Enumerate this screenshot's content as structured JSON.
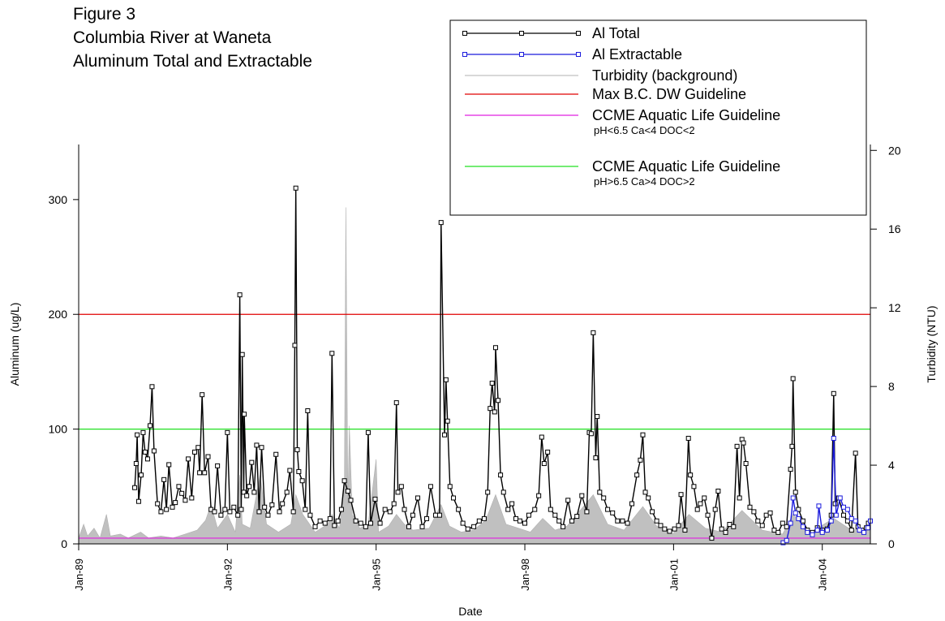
{
  "chart_data": {
    "type": "line",
    "title": [
      "Figure 3",
      "Columbia River at Waneta",
      "Aluminum Total and Extractable"
    ],
    "x_label": "Date",
    "y_label": "Aluminum (ug/L)",
    "y2_label": "Turbidity (NTU)",
    "xlim": [
      1989,
      2004.97
    ],
    "xticks": [
      {
        "value": 1989,
        "label": "Jan-89"
      },
      {
        "value": 1992,
        "label": "Jan-92"
      },
      {
        "value": 1995,
        "label": "Jan-95"
      },
      {
        "value": 1998,
        "label": "Jan-98"
      },
      {
        "value": 2001,
        "label": "Jan-01"
      },
      {
        "value": 2004,
        "label": "Jan-04"
      }
    ],
    "ylim": [
      0,
      348
    ],
    "yticks": [
      0,
      100,
      200,
      300
    ],
    "y2lim": [
      0,
      20.3
    ],
    "y2ticks": [
      0,
      4,
      8,
      12,
      16,
      20
    ],
    "series": [
      {
        "name": "Al Total",
        "color": "#000000",
        "style": "line-markers",
        "x": [
          1990.13,
          1990.16,
          1990.18,
          1990.21,
          1990.26,
          1990.3,
          1990.34,
          1990.39,
          1990.44,
          1990.48,
          1990.52,
          1990.59,
          1990.66,
          1990.72,
          1990.77,
          1990.82,
          1990.89,
          1990.95,
          1991.02,
          1991.08,
          1991.15,
          1991.21,
          1991.28,
          1991.34,
          1991.41,
          1991.44,
          1991.49,
          1991.54,
          1991.61,
          1991.67,
          1991.74,
          1991.8,
          1991.87,
          1991.95,
          1992.0,
          1992.05,
          1992.13,
          1992.21,
          1992.25,
          1992.28,
          1992.3,
          1992.33,
          1992.34,
          1992.39,
          1992.44,
          1992.49,
          1992.54,
          1992.59,
          1992.64,
          1992.69,
          1992.75,
          1992.82,
          1992.9,
          1992.98,
          1993.05,
          1993.11,
          1993.2,
          1993.26,
          1993.33,
          1993.36,
          1993.38,
          1993.41,
          1993.44,
          1993.51,
          1993.57,
          1993.62,
          1993.67,
          1993.77,
          1993.87,
          1993.97,
          1994.07,
          1994.11,
          1994.16,
          1994.23,
          1994.3,
          1994.36,
          1994.43,
          1994.49,
          1994.59,
          1994.69,
          1994.79,
          1994.84,
          1994.89,
          1994.98,
          1995.08,
          1995.18,
          1995.28,
          1995.36,
          1995.41,
          1995.44,
          1995.51,
          1995.57,
          1995.66,
          1995.74,
          1995.84,
          1995.93,
          1996.02,
          1996.1,
          1996.2,
          1996.28,
          1996.31,
          1996.38,
          1996.41,
          1996.44,
          1996.49,
          1996.56,
          1996.66,
          1996.75,
          1996.85,
          1996.97,
          1997.08,
          1997.18,
          1997.25,
          1997.3,
          1997.34,
          1997.39,
          1997.41,
          1997.46,
          1997.51,
          1997.57,
          1997.66,
          1997.74,
          1997.82,
          1997.9,
          1998.0,
          1998.08,
          1998.2,
          1998.28,
          1998.34,
          1998.39,
          1998.46,
          1998.52,
          1998.61,
          1998.69,
          1998.77,
          1998.87,
          1998.95,
          1999.05,
          1999.15,
          1999.25,
          1999.3,
          1999.34,
          1999.38,
          1999.43,
          1999.46,
          1999.51,
          1999.59,
          1999.67,
          1999.77,
          1999.87,
          1999.97,
          2000.07,
          2000.16,
          2000.26,
          2000.33,
          2000.38,
          2000.43,
          2000.49,
          2000.57,
          2000.66,
          2000.74,
          2000.82,
          2000.92,
          2001.02,
          2001.1,
          2001.15,
          2001.23,
          2001.3,
          2001.34,
          2001.41,
          2001.48,
          2001.54,
          2001.62,
          2001.69,
          2001.77,
          2001.84,
          2001.9,
          2001.97,
          2002.05,
          2002.13,
          2002.21,
          2002.28,
          2002.33,
          2002.38,
          2002.41,
          2002.46,
          2002.54,
          2002.62,
          2002.7,
          2002.79,
          2002.87,
          2002.95,
          2003.03,
          2003.11,
          2003.2,
          2003.28,
          2003.36,
          2003.39,
          2003.41,
          2003.46,
          2003.52,
          2003.61,
          2003.7,
          2003.8,
          2003.9,
          2004.0,
          2004.1,
          2004.18,
          2004.23,
          2004.26,
          2004.33,
          2004.43,
          2004.51,
          2004.59,
          2004.67,
          2004.72,
          2004.8,
          2004.89,
          2004.93
        ],
        "values": [
          49,
          70,
          95,
          37,
          60,
          97,
          80,
          74,
          103,
          137,
          81,
          35,
          28,
          56,
          30,
          69,
          32,
          36,
          50,
          44,
          38,
          74,
          40,
          80,
          84,
          62,
          130,
          62,
          76,
          30,
          28,
          68,
          25,
          30,
          97,
          28,
          32,
          25,
          217,
          30,
          165,
          45,
          113,
          42,
          50,
          71,
          45,
          86,
          28,
          84,
          32,
          25,
          34,
          78,
          28,
          35,
          45,
          64,
          28,
          173,
          310,
          82,
          63,
          55,
          30,
          116,
          25,
          15,
          20,
          18,
          22,
          166,
          16,
          20,
          30,
          55,
          46,
          38,
          20,
          18,
          15,
          97,
          18,
          39,
          18,
          30,
          28,
          35,
          123,
          45,
          50,
          30,
          15,
          25,
          40,
          15,
          22,
          50,
          25,
          25,
          280,
          95,
          143,
          107,
          50,
          40,
          30,
          18,
          13,
          15,
          20,
          22,
          45,
          118,
          140,
          115,
          171,
          125,
          60,
          45,
          30,
          35,
          22,
          20,
          18,
          25,
          30,
          42,
          93,
          70,
          80,
          30,
          25,
          20,
          15,
          38,
          20,
          24,
          42,
          28,
          97,
          96,
          184,
          75,
          111,
          45,
          40,
          30,
          27,
          20,
          20,
          18,
          35,
          60,
          73,
          95,
          45,
          40,
          28,
          20,
          16,
          13,
          11,
          13,
          16,
          43,
          12,
          92,
          60,
          50,
          30,
          35,
          40,
          25,
          5,
          30,
          46,
          13,
          10,
          17,
          15,
          85,
          40,
          91,
          88,
          70,
          32,
          28,
          20,
          16,
          25,
          27,
          12,
          10,
          18,
          15,
          65,
          85,
          144,
          45,
          30,
          20,
          12,
          10,
          14,
          12,
          13,
          25,
          131,
          35,
          40,
          25,
          20,
          12,
          79,
          15,
          12,
          14,
          18
        ]
      },
      {
        "name": "Al Extractable",
        "color": "#1a1adc",
        "style": "line-markers",
        "x": [
          2003.21,
          2003.28,
          2003.36,
          2003.41,
          2003.46,
          2003.52,
          2003.61,
          2003.7,
          2003.8,
          2003.9,
          2003.93,
          2004.0,
          2004.1,
          2004.18,
          2004.23,
          2004.28,
          2004.36,
          2004.43,
          2004.51,
          2004.59,
          2004.67,
          2004.75,
          2004.84,
          2004.92,
          2004.97
        ],
        "values": [
          1,
          3,
          18,
          40,
          27,
          22,
          15,
          10,
          8,
          12,
          33,
          10,
          12,
          20,
          92,
          25,
          40,
          32,
          30,
          22,
          20,
          12,
          10,
          14,
          20
        ]
      },
      {
        "name": "Turbidity (background)",
        "color": "#c0c0c0",
        "style": "area",
        "axis": "y2",
        "x": [
          1989.0,
          1989.1,
          1989.18,
          1989.31,
          1989.43,
          1989.56,
          1989.64,
          1989.84,
          1990.0,
          1990.25,
          1990.41,
          1990.66,
          1990.9,
          1991.15,
          1991.39,
          1991.56,
          1991.67,
          1991.8,
          1992.0,
          1992.16,
          1992.25,
          1992.3,
          1992.46,
          1992.66,
          1992.79,
          1993.03,
          1993.28,
          1993.38,
          1993.52,
          1993.77,
          1994.02,
          1994.11,
          1994.26,
          1994.36,
          1994.39,
          1994.43,
          1994.46,
          1994.52,
          1994.67,
          1994.84,
          1995.0,
          1995.05,
          1995.25,
          1995.41,
          1995.57,
          1995.74,
          1996.07,
          1996.31,
          1996.48,
          1996.72,
          1996.97,
          1997.21,
          1997.41,
          1997.62,
          1997.87,
          1998.11,
          1998.36,
          1998.61,
          1998.85,
          1999.38,
          1999.67,
          2000.0,
          2000.38,
          2000.66,
          2000.98,
          2001.31,
          2001.64,
          2001.97,
          2002.38,
          2002.79,
          2003.2,
          2003.41,
          2003.77,
          2004.23,
          2004.59,
          2004.97
        ],
        "values": [
          0.3,
          1.0,
          0.4,
          0.8,
          0.3,
          1.5,
          0.4,
          0.5,
          0.3,
          0.6,
          0.3,
          0.4,
          0.3,
          0.5,
          0.7,
          1.2,
          2.0,
          0.8,
          1.5,
          0.6,
          3.5,
          1.0,
          0.8,
          3.5,
          1.0,
          0.6,
          1.0,
          2.5,
          1.5,
          0.6,
          1.0,
          1.5,
          0.8,
          3.0,
          17.1,
          2.0,
          6.0,
          1.5,
          0.8,
          1.0,
          4.3,
          0.6,
          0.9,
          1.5,
          1.0,
          0.7,
          0.8,
          2.0,
          0.9,
          0.6,
          0.7,
          1.2,
          2.5,
          1.0,
          0.8,
          0.6,
          1.3,
          0.7,
          0.9,
          2.5,
          1.0,
          0.7,
          1.9,
          0.9,
          0.5,
          1.5,
          0.8,
          0.6,
          1.7,
          0.7,
          0.5,
          1.5,
          0.6,
          1.3,
          0.7,
          0.8
        ]
      },
      {
        "name": "Max B.C. DW Guideline",
        "color": "#e00000",
        "style": "hline",
        "value": 200
      },
      {
        "name": "CCME Aquatic Life Guideline",
        "note": "pH<6.5 Ca<4 DOC<2",
        "color": "#e020e0",
        "style": "hline",
        "value": 5
      },
      {
        "name": "CCME Aquatic Life Guideline",
        "note": "pH>6.5 Ca>4 DOC>2",
        "color": "#20e020",
        "style": "hline",
        "value": 100
      }
    ]
  }
}
